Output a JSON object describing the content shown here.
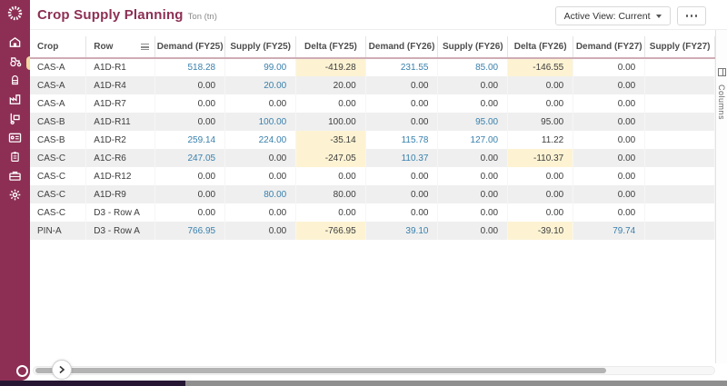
{
  "header": {
    "title": "Crop Supply Planning",
    "unit": "Ton (tn)",
    "active_view": "Active View: Current"
  },
  "sidebar": {
    "items": [
      {
        "name": "barn",
        "icon": "barn-icon",
        "active": false
      },
      {
        "name": "tractor",
        "icon": "tractor-icon",
        "active": true
      },
      {
        "name": "silo",
        "icon": "silo-icon",
        "active": false
      },
      {
        "name": "factory",
        "icon": "factory-icon",
        "active": false
      },
      {
        "name": "handtruck",
        "icon": "handtruck-icon",
        "active": false
      },
      {
        "name": "license-card",
        "icon": "license-card-icon",
        "active": false
      },
      {
        "name": "clipboard",
        "icon": "clipboard-icon",
        "active": false
      },
      {
        "name": "toolbox",
        "icon": "toolbox-icon",
        "active": false
      },
      {
        "name": "settings",
        "icon": "gear-icon",
        "active": false
      }
    ]
  },
  "grid": {
    "columns": [
      {
        "key": "crop",
        "label": "Crop",
        "kind": "text"
      },
      {
        "key": "row",
        "label": "Row",
        "kind": "text",
        "menu": true
      },
      {
        "key": "d25",
        "label": "Demand (FY25)",
        "kind": "num"
      },
      {
        "key": "s25",
        "label": "Supply (FY25)",
        "kind": "num"
      },
      {
        "key": "dl25",
        "label": "Delta (FY25)",
        "kind": "delta"
      },
      {
        "key": "d26",
        "label": "Demand (FY26)",
        "kind": "num"
      },
      {
        "key": "s26",
        "label": "Supply (FY26)",
        "kind": "num"
      },
      {
        "key": "dl26",
        "label": "Delta (FY26)",
        "kind": "delta"
      },
      {
        "key": "d27",
        "label": "Demand (FY27)",
        "kind": "num"
      },
      {
        "key": "s27",
        "label": "Supply (FY27)",
        "kind": "num"
      }
    ],
    "rows": [
      {
        "crop": "CAS-A",
        "row": "A1D-R1",
        "d25": "518.28",
        "s25": "99.00",
        "dl25": "-419.28",
        "d26": "231.55",
        "s26": "85.00",
        "dl26": "-146.55",
        "d27": "0.00"
      },
      {
        "crop": "CAS-A",
        "row": "A1D-R4",
        "d25": "0.00",
        "s25": "20.00",
        "dl25": "20.00",
        "d26": "0.00",
        "s26": "0.00",
        "dl26": "0.00",
        "d27": "0.00"
      },
      {
        "crop": "CAS-A",
        "row": "A1D-R7",
        "d25": "0.00",
        "s25": "0.00",
        "dl25": "0.00",
        "d26": "0.00",
        "s26": "0.00",
        "dl26": "0.00",
        "d27": "0.00"
      },
      {
        "crop": "CAS-B",
        "row": "A1D-R11",
        "d25": "0.00",
        "s25": "100.00",
        "dl25": "100.00",
        "d26": "0.00",
        "s26": "95.00",
        "dl26": "95.00",
        "d27": "0.00"
      },
      {
        "crop": "CAS-B",
        "row": "A1D-R2",
        "d25": "259.14",
        "s25": "224.00",
        "dl25": "-35.14",
        "d26": "115.78",
        "s26": "127.00",
        "dl26": "11.22",
        "d27": "0.00"
      },
      {
        "crop": "CAS-C",
        "row": "A1C-R6",
        "d25": "247.05",
        "s25": "0.00",
        "dl25": "-247.05",
        "d26": "110.37",
        "s26": "0.00",
        "dl26": "-110.37",
        "d27": "0.00"
      },
      {
        "crop": "CAS-C",
        "row": "A1D-R12",
        "d25": "0.00",
        "s25": "0.00",
        "dl25": "0.00",
        "d26": "0.00",
        "s26": "0.00",
        "dl26": "0.00",
        "d27": "0.00"
      },
      {
        "crop": "CAS-C",
        "row": "A1D-R9",
        "d25": "0.00",
        "s25": "80.00",
        "dl25": "80.00",
        "d26": "0.00",
        "s26": "0.00",
        "dl26": "0.00",
        "d27": "0.00"
      },
      {
        "crop": "CAS-C",
        "row": "D3 - Row A",
        "d25": "0.00",
        "s25": "0.00",
        "dl25": "0.00",
        "d26": "0.00",
        "s26": "0.00",
        "dl26": "0.00",
        "d27": "0.00"
      },
      {
        "crop": "PIN-A",
        "row": "D3 - Row A",
        "d25": "766.95",
        "s25": "0.00",
        "dl25": "-766.95",
        "d26": "39.10",
        "s26": "0.00",
        "dl26": "-39.10",
        "d27": "79.74"
      }
    ]
  },
  "side_panel": {
    "label": "Columns"
  },
  "colors": {
    "brand": "#8d2f54",
    "value_blue": "#3880ad",
    "delta_negative_bg": "#fdf3d3",
    "row_stripe": "#efefef",
    "active_indicator": "#f2d9a4"
  }
}
